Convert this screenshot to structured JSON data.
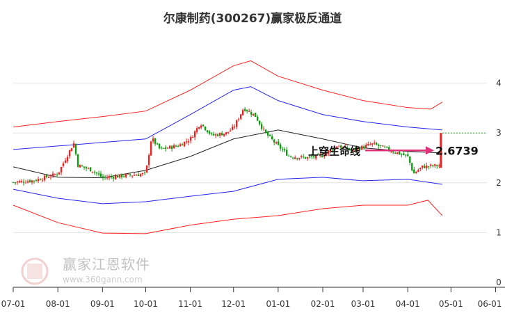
{
  "chart_data": {
    "type": "candlestick",
    "title": "尔康制药(300267)赢家极反通道",
    "ylim": [
      0,
      4.5
    ],
    "y_ticks": [
      "0",
      "1",
      "2",
      "3",
      "4"
    ],
    "x_ticks": [
      {
        "label": "07-01",
        "day": 0
      },
      {
        "label": "08-01",
        "day": 31
      },
      {
        "label": "09-01",
        "day": 62
      },
      {
        "label": "10-01",
        "day": 92
      },
      {
        "label": "11-01",
        "day": 123
      },
      {
        "label": "12-01",
        "day": 153
      },
      {
        "label": "01-01",
        "day": 184
      },
      {
        "label": "02-01",
        "day": 215
      },
      {
        "label": "03-01",
        "day": 243
      },
      {
        "label": "04-01",
        "day": 274
      },
      {
        "label": "05-01",
        "day": 304
      },
      {
        "label": "06-01",
        "day": 335
      }
    ],
    "price_path": [
      [
        0,
        2.01
      ],
      [
        15,
        2.05
      ],
      [
        31,
        2.18
      ],
      [
        42,
        2.8
      ],
      [
        45,
        2.35
      ],
      [
        55,
        2.25
      ],
      [
        62,
        2.1
      ],
      [
        80,
        2.15
      ],
      [
        92,
        2.18
      ],
      [
        96,
        2.9
      ],
      [
        102,
        2.67
      ],
      [
        115,
        2.75
      ],
      [
        123,
        2.88
      ],
      [
        130,
        3.2
      ],
      [
        138,
        2.95
      ],
      [
        148,
        3.0
      ],
      [
        153,
        3.1
      ],
      [
        160,
        3.5
      ],
      [
        168,
        3.35
      ],
      [
        175,
        3.0
      ],
      [
        184,
        2.74
      ],
      [
        192,
        2.53
      ],
      [
        205,
        2.5
      ],
      [
        215,
        2.55
      ],
      [
        225,
        2.75
      ],
      [
        235,
        2.65
      ],
      [
        243,
        2.72
      ],
      [
        250,
        2.78
      ],
      [
        262,
        2.65
      ],
      [
        274,
        2.53
      ],
      [
        278,
        2.18
      ],
      [
        284,
        2.32
      ],
      [
        296,
        2.35
      ]
    ],
    "last_candle": {
      "open": 2.3,
      "close": 3.0
    },
    "ma_line": [
      [
        0,
        2.32
      ],
      [
        31,
        2.11
      ],
      [
        62,
        2.1
      ],
      [
        92,
        2.25
      ],
      [
        123,
        2.53
      ],
      [
        153,
        2.88
      ],
      [
        184,
        3.06
      ],
      [
        215,
        2.88
      ],
      [
        243,
        2.7
      ],
      [
        274,
        2.63
      ],
      [
        298,
        2.6
      ]
    ],
    "red_upper": [
      [
        0,
        3.12
      ],
      [
        31,
        3.23
      ],
      [
        62,
        3.33
      ],
      [
        92,
        3.44
      ],
      [
        123,
        3.86
      ],
      [
        153,
        4.35
      ],
      [
        165,
        4.45
      ],
      [
        184,
        4.14
      ],
      [
        215,
        3.86
      ],
      [
        243,
        3.65
      ],
      [
        274,
        3.51
      ],
      [
        290,
        3.48
      ],
      [
        298,
        3.62
      ]
    ],
    "red_lower": [
      [
        0,
        1.55
      ],
      [
        31,
        1.2
      ],
      [
        62,
        0.99
      ],
      [
        92,
        0.98
      ],
      [
        123,
        1.15
      ],
      [
        153,
        1.27
      ],
      [
        184,
        1.34
      ],
      [
        215,
        1.48
      ],
      [
        243,
        1.55
      ],
      [
        274,
        1.55
      ],
      [
        288,
        1.65
      ],
      [
        298,
        1.34
      ]
    ],
    "blue_upper": [
      [
        0,
        2.67
      ],
      [
        31,
        2.74
      ],
      [
        62,
        2.81
      ],
      [
        92,
        2.88
      ],
      [
        123,
        3.37
      ],
      [
        153,
        3.86
      ],
      [
        165,
        3.93
      ],
      [
        184,
        3.65
      ],
      [
        215,
        3.37
      ],
      [
        243,
        3.23
      ],
      [
        274,
        3.12
      ],
      [
        298,
        3.06
      ]
    ],
    "blue_lower": [
      [
        0,
        1.87
      ],
      [
        31,
        1.69
      ],
      [
        62,
        1.58
      ],
      [
        92,
        1.62
      ],
      [
        123,
        1.73
      ],
      [
        153,
        1.83
      ],
      [
        184,
        2.07
      ],
      [
        215,
        2.11
      ],
      [
        243,
        2.04
      ],
      [
        274,
        2.07
      ],
      [
        298,
        1.97
      ]
    ],
    "annotation": {
      "text": "上穿生命线",
      "value_label": "2.6739",
      "arrow_value": 2.6739
    },
    "ref_line": {
      "value": 3.0,
      "label": "3"
    },
    "colors": {
      "up": "#ee2222",
      "down": "#119911",
      "ma": "#222222",
      "red_band": "#ff2020",
      "blue_band": "#2424ee",
      "arrow": "#e0307a",
      "ref": "#229922"
    }
  },
  "watermark": {
    "name": "赢家江恩软件",
    "url": "www.360gann.com",
    "seal": "江赢恩家"
  }
}
